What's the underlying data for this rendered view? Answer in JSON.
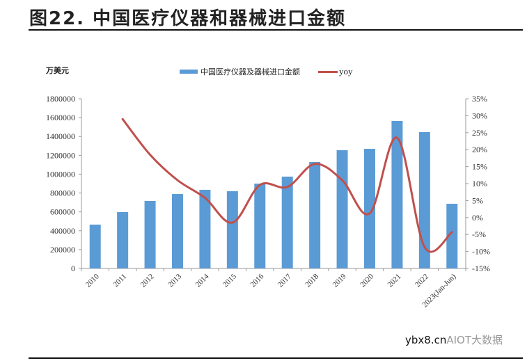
{
  "header": {
    "title": "图22. 中国医疗仪器和器械进口金额"
  },
  "unit_label": "万美元",
  "legend": {
    "bar_label": "中国医疗仪器及器械进口金额",
    "line_label": "yoy"
  },
  "watermark": {
    "prefix": "ybx8.cn",
    "suffix": "AIOT大数据"
  },
  "colors": {
    "bar": "#5b9bd5",
    "line": "#c0504d"
  },
  "chart_data": {
    "type": "bar",
    "title": "图22. 中国医疗仪器和器械进口金额",
    "xlabel": "",
    "ylabel": "万美元",
    "y2label": "yoy",
    "ylim": [
      0,
      1800000
    ],
    "y2lim": [
      -0.15,
      0.35
    ],
    "yticks": [
      "0",
      "200000",
      "400000",
      "600000",
      "800000",
      "1000000",
      "1200000",
      "1400000",
      "1600000",
      "1800000"
    ],
    "y2ticks": [
      "-15%",
      "-10%",
      "-5%",
      "0%",
      "5%",
      "10%",
      "15%",
      "20%",
      "25%",
      "30%",
      "35%"
    ],
    "legend_position": "top",
    "grid": false,
    "categories": [
      "2010",
      "2011",
      "2012",
      "2013",
      "2014",
      "2015",
      "2016",
      "2017",
      "2018",
      "2019",
      "2020",
      "2021",
      "2022",
      "2023(Jan-Jun)"
    ],
    "series": [
      {
        "name": "中国医疗仪器及器械进口金额",
        "type": "bar",
        "axis": "left",
        "values": [
          465000,
          598000,
          716000,
          789000,
          834000,
          819000,
          900000,
          974000,
          1129000,
          1254000,
          1269000,
          1564000,
          1446000,
          686000
        ]
      },
      {
        "name": "yoy",
        "type": "line",
        "axis": "right",
        "values": [
          null,
          0.29,
          0.185,
          0.11,
          0.058,
          -0.015,
          0.096,
          0.09,
          0.158,
          0.11,
          0.012,
          0.235,
          -0.087,
          -0.043
        ]
      }
    ]
  }
}
